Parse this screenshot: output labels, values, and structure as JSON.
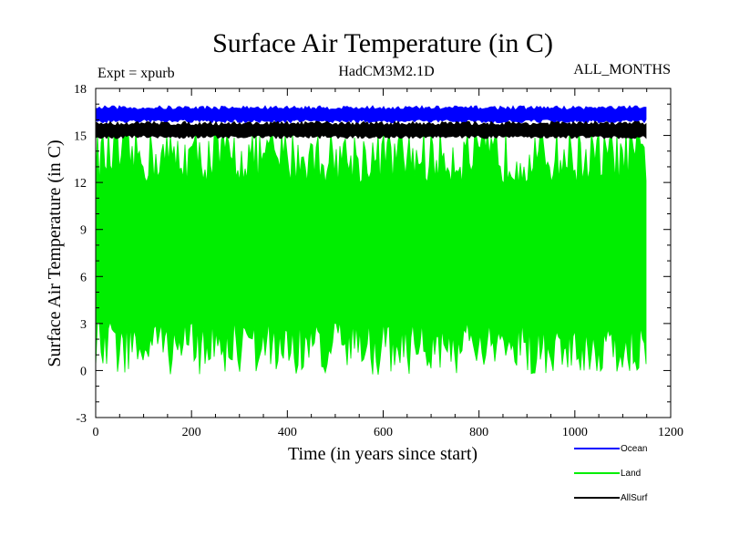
{
  "chart_data": {
    "type": "line",
    "title": "Surface Air Temperature (in C)",
    "subtitle_left": "Expt = xpurb",
    "subtitle_center": "HadCM3M2.1D",
    "subtitle_right": "ALL_MONTHS",
    "xlabel": "Time (in years since start)",
    "ylabel": "Surface Air Temperature (in C)",
    "xlim": [
      0,
      1200
    ],
    "ylim": [
      -3,
      18
    ],
    "xticks": [
      0,
      200,
      400,
      600,
      800,
      1000,
      1200
    ],
    "yticks": [
      -3,
      0,
      3,
      6,
      9,
      12,
      15,
      18
    ],
    "x_data_range": [
      0,
      1150
    ],
    "series": [
      {
        "name": "Ocean",
        "color": "#0000ff",
        "band_min": 15.8,
        "band_max": 16.9,
        "mean": 16.3
      },
      {
        "name": "Land",
        "color": "#00ee00",
        "band_min": -0.3,
        "band_max": 15.4,
        "mean": 7.5
      },
      {
        "name": "AllSurf",
        "color": "#000000",
        "band_min": 14.8,
        "band_max": 15.9,
        "mean": 15.3
      }
    ],
    "legend": {
      "position": "bottom-right",
      "entries": [
        "Ocean",
        "Land",
        "AllSurf"
      ]
    }
  }
}
